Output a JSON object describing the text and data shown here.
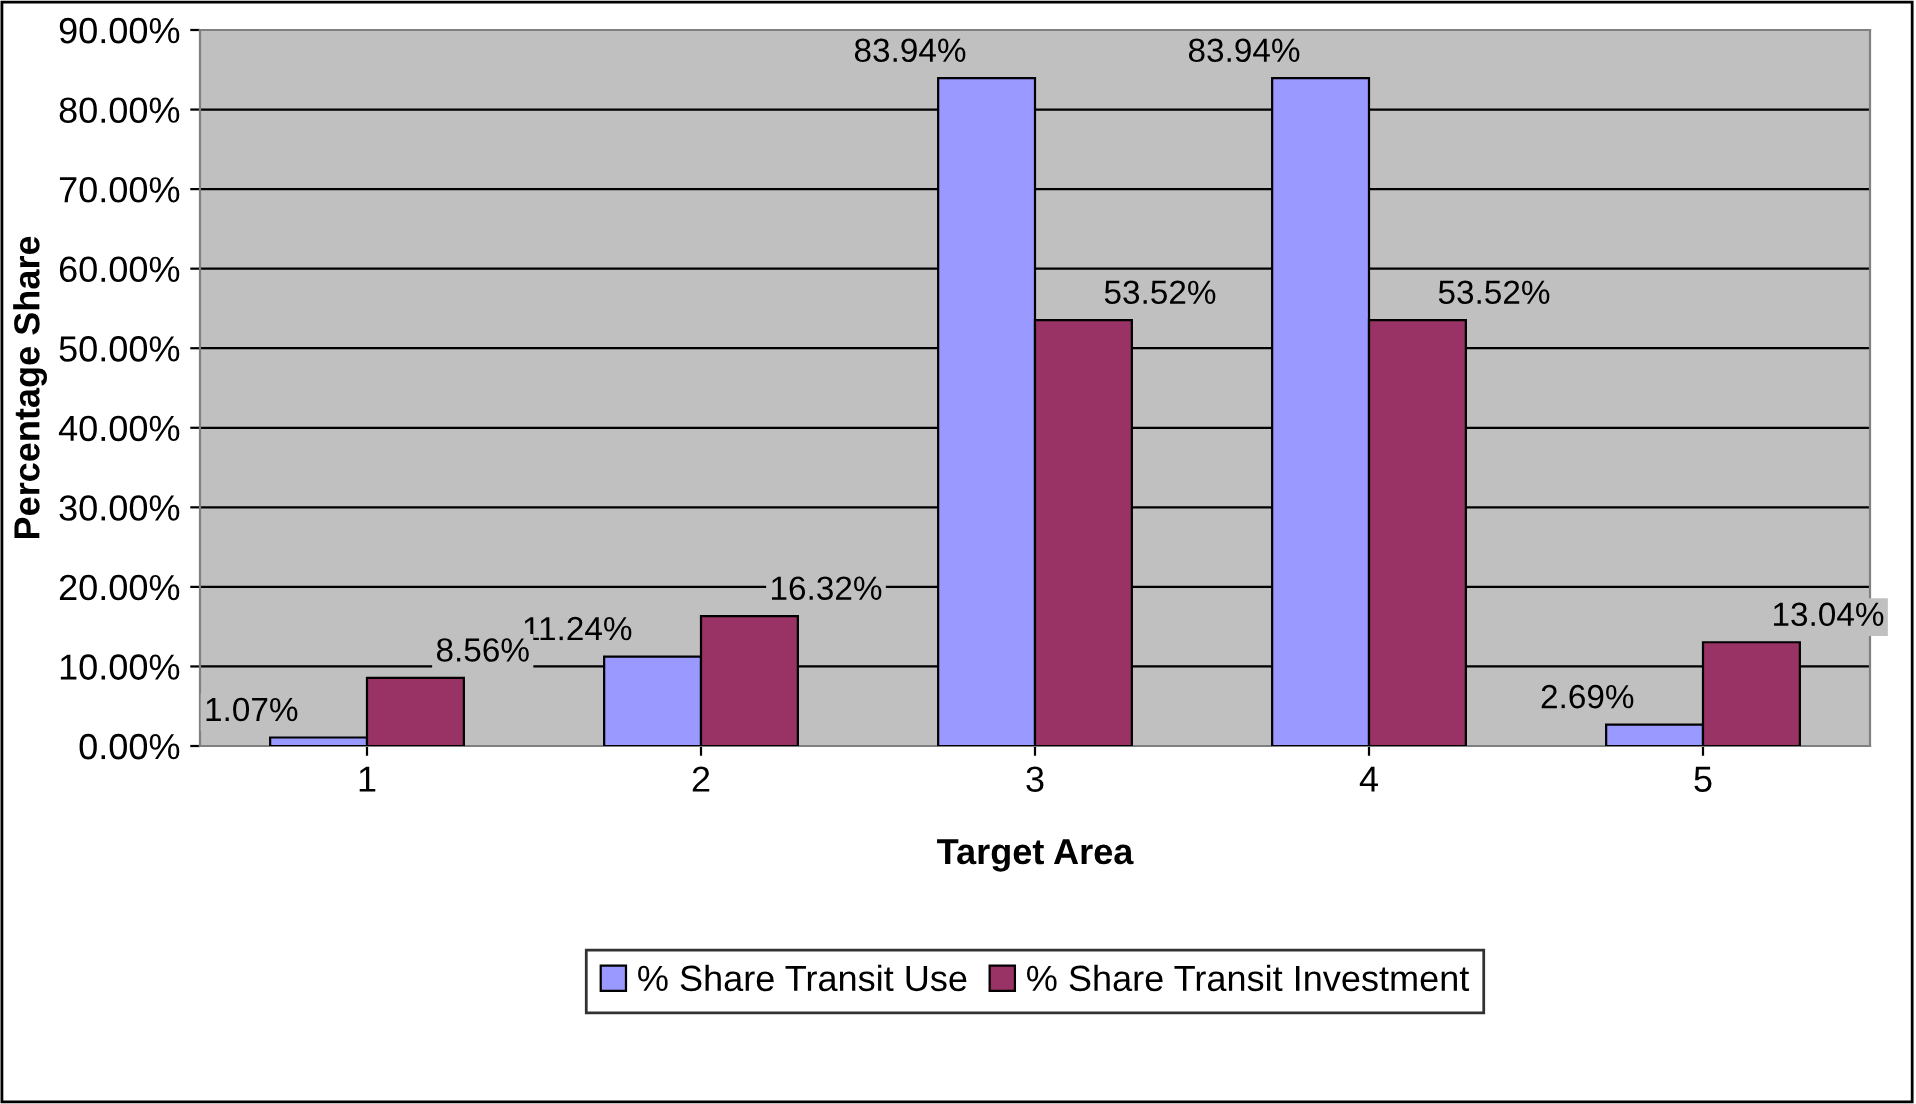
{
  "chart_data": {
    "type": "bar",
    "xlabel": "Target Area",
    "ylabel": "Percentage Share",
    "categories": [
      "1",
      "2",
      "3",
      "4",
      "5"
    ],
    "series": [
      {
        "name": "% Share Transit Use",
        "color": "#9999ff",
        "values": [
          1.07,
          11.24,
          83.94,
          83.94,
          2.69
        ],
        "value_labels": [
          "1.07%",
          "11.24%",
          "83.94%",
          "83.94%",
          "2.69%"
        ]
      },
      {
        "name": "% Share Transit Investment",
        "color": "#993366",
        "values": [
          8.56,
          16.32,
          53.52,
          53.52,
          13.04
        ],
        "value_labels": [
          "8.56%",
          "16.32%",
          "53.52%",
          "53.52%",
          "13.04%"
        ]
      }
    ],
    "ylim": [
      0,
      90
    ],
    "yticks": [
      {
        "value": 0,
        "label": "0.00%"
      },
      {
        "value": 10,
        "label": "10.00%"
      },
      {
        "value": 20,
        "label": "20.00%"
      },
      {
        "value": 30,
        "label": "30.00%"
      },
      {
        "value": 40,
        "label": "40.00%"
      },
      {
        "value": 50,
        "label": "50.00%"
      },
      {
        "value": 60,
        "label": "60.00%"
      },
      {
        "value": 70,
        "label": "70.00%"
      },
      {
        "value": 80,
        "label": "80.00%"
      },
      {
        "value": 90,
        "label": "90.00%"
      }
    ],
    "grid": "y",
    "legend": "bottom"
  }
}
